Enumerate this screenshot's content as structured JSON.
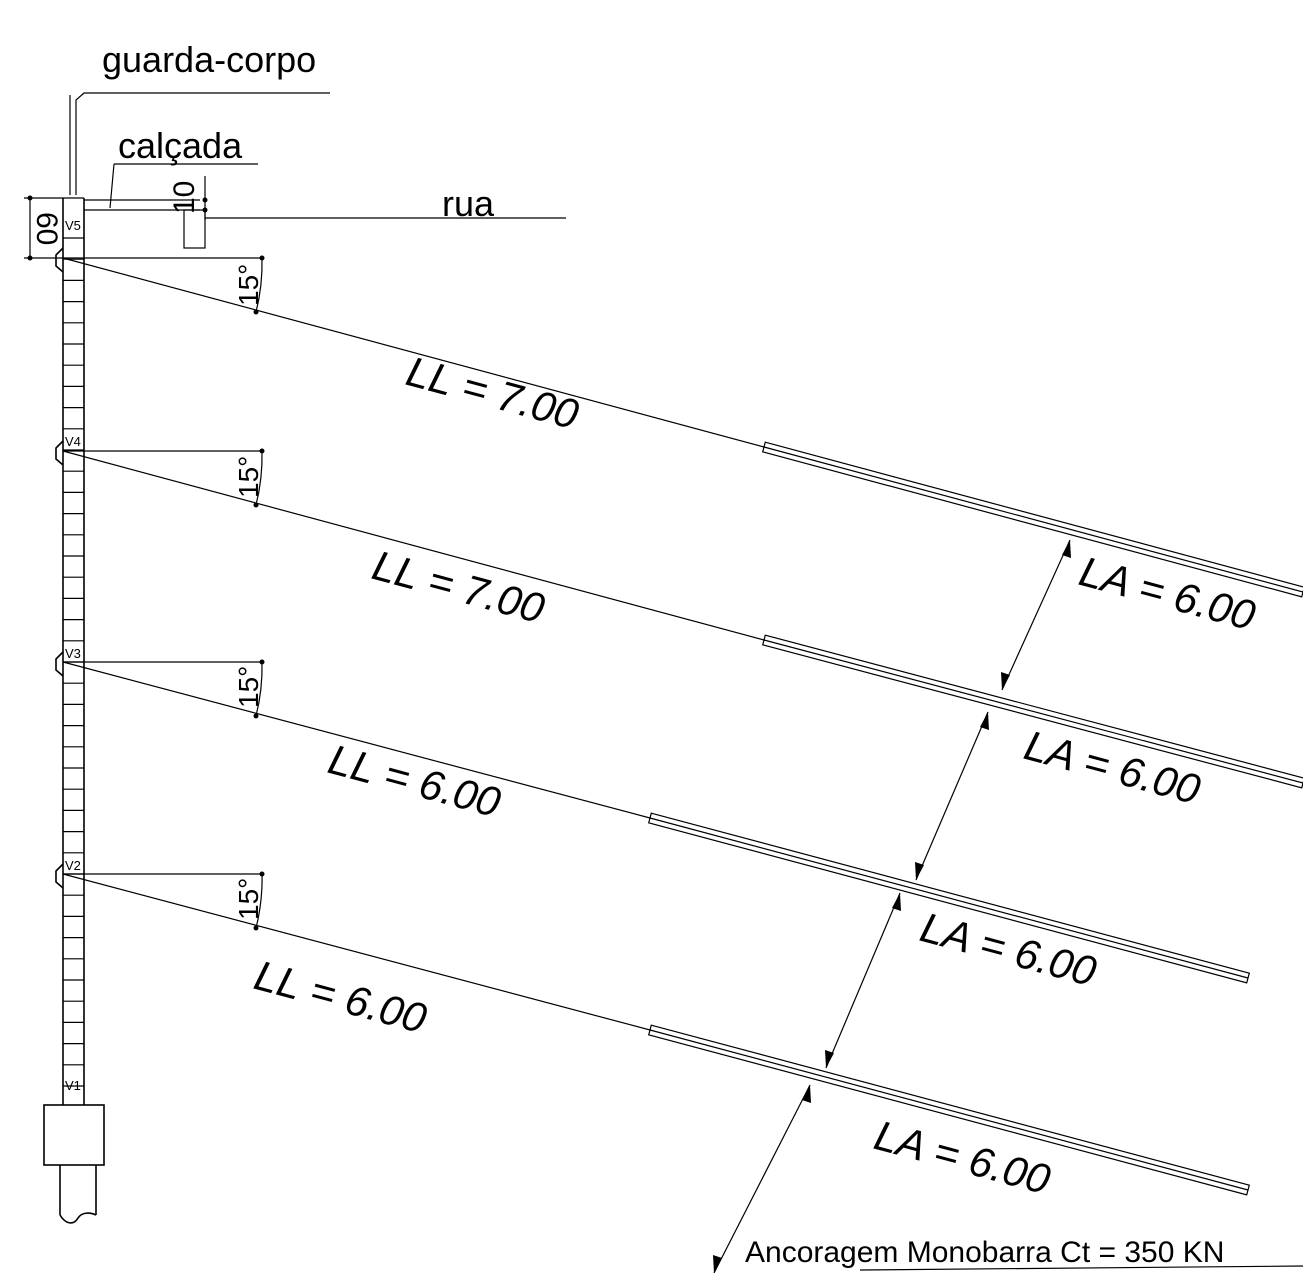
{
  "labels": {
    "guardrail": "guarda-corpo",
    "sidewalk": "calçada",
    "street": "rua",
    "dim_top": "60",
    "dim_curb": "10",
    "anchor_note": "Ancoragem Monobarra Ct = 350 KN"
  },
  "beams": [
    "V5",
    "V4",
    "V3",
    "V2",
    "V1"
  ],
  "anchors": [
    {
      "beam": "V5",
      "angle": "15°",
      "ll": "LL = 7.00",
      "la": "LA = 6.00"
    },
    {
      "beam": "V4",
      "angle": "15°",
      "ll": "LL = 7.00",
      "la": "LA = 6.00"
    },
    {
      "beam": "V3",
      "angle": "15°",
      "ll": "LL = 6.00",
      "la": "LA = 6.00"
    },
    {
      "beam": "V2",
      "angle": "15°",
      "ll": "LL = 6.00",
      "la": "LA = 6.00"
    }
  ]
}
